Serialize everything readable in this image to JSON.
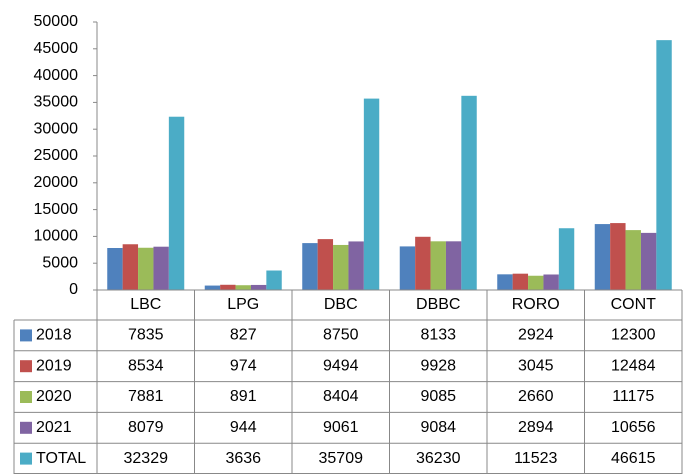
{
  "chart_data": {
    "type": "bar",
    "categories": [
      "LBC",
      "LPG",
      "DBC",
      "DBBC",
      "RORO",
      "CONT"
    ],
    "series": [
      {
        "name": "2018",
        "color": "#4f81bd",
        "values": [
          7835,
          827,
          8750,
          8133,
          2924,
          12300
        ]
      },
      {
        "name": "2019",
        "color": "#c0504d",
        "values": [
          8534,
          974,
          9494,
          9928,
          3045,
          12484
        ]
      },
      {
        "name": "2020",
        "color": "#9bbb59",
        "values": [
          7881,
          891,
          8404,
          9085,
          2660,
          11175
        ]
      },
      {
        "name": "2021",
        "color": "#8064a2",
        "values": [
          8079,
          944,
          9061,
          9084,
          2894,
          10656
        ]
      },
      {
        "name": "TOTAL",
        "color": "#4bacc6",
        "values": [
          32329,
          3636,
          35709,
          36230,
          11523,
          46615
        ]
      }
    ],
    "ylim": [
      0,
      50000
    ],
    "yticks": [
      0,
      5000,
      10000,
      15000,
      20000,
      25000,
      30000,
      35000,
      40000,
      45000,
      50000
    ],
    "grid": false
  }
}
